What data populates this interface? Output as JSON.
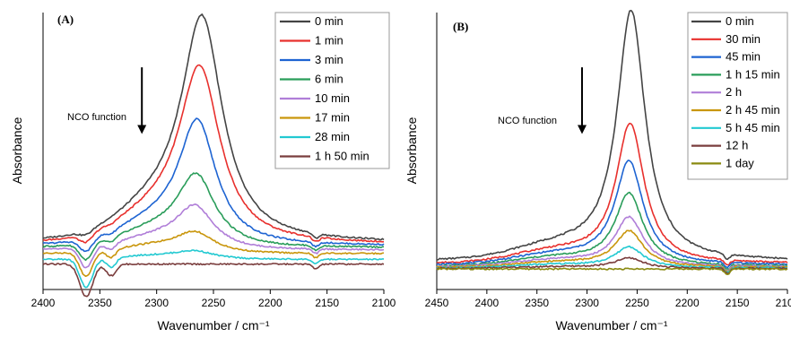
{
  "chart_data": [
    {
      "type": "line",
      "panel_label": "(A)",
      "xlabel": "Wavenumber / cm⁻¹",
      "ylabel": "Absorbance",
      "xlim": [
        2400,
        2100
      ],
      "ylim": [
        -0.2,
        1.0
      ],
      "x_ticks": [
        "2400",
        "2350",
        "2300",
        "2250",
        "2200",
        "2150",
        "2100"
      ],
      "x_tick_values": [
        2400,
        2350,
        2300,
        2250,
        2200,
        2150,
        2100
      ],
      "legend_position": "top-right",
      "annotation": {
        "text": "NCO function",
        "arrow_x": 2313,
        "arrow_y_from": 0.78,
        "arrow_y_to": 0.52
      },
      "series": [
        {
          "name": "0 min",
          "color": "#444444",
          "peak_x": 2260,
          "peak_height": 0.94,
          "width": 22,
          "base_level": 0.0
        },
        {
          "name": "1 min",
          "color": "#e8302d",
          "peak_x": 2262,
          "peak_height": 0.73,
          "width": 22,
          "base_level": -0.005
        },
        {
          "name": "3 min",
          "color": "#1e64d2",
          "peak_x": 2264,
          "peak_height": 0.51,
          "width": 20,
          "base_level": -0.012
        },
        {
          "name": "6 min",
          "color": "#2a9d5a",
          "peak_x": 2265,
          "peak_height": 0.29,
          "width": 20,
          "base_level": -0.02
        },
        {
          "name": "10 min",
          "color": "#b07ed8",
          "peak_x": 2266,
          "peak_height": 0.17,
          "width": 20,
          "base_level": -0.03
        },
        {
          "name": "17 min",
          "color": "#c9960c",
          "peak_x": 2266,
          "peak_height": 0.08,
          "width": 20,
          "base_level": -0.045
        },
        {
          "name": "28 min",
          "color": "#22c9d1",
          "peak_x": 2266,
          "peak_height": 0.03,
          "width": 20,
          "base_level": -0.07
        },
        {
          "name": "1 h 50 min",
          "color": "#7a3d3d",
          "peak_x": 2266,
          "peak_height": 0.0,
          "width": 20,
          "base_level": -0.09
        }
      ]
    },
    {
      "type": "line",
      "panel_label": "(B)",
      "xlabel": "Wavenumber / cm⁻¹",
      "ylabel": "Absorbance",
      "xlim": [
        2450,
        2100
      ],
      "ylim": [
        -0.08,
        1.0
      ],
      "x_ticks": [
        "2450",
        "2400",
        "2350",
        "2300",
        "2250",
        "2200",
        "2150",
        "2100"
      ],
      "x_tick_values": [
        2450,
        2400,
        2350,
        2300,
        2250,
        2200,
        2150,
        2100
      ],
      "legend_position": "top-right",
      "annotation": {
        "text": "NCO function",
        "arrow_x": 2305,
        "arrow_y_from": 0.78,
        "arrow_y_to": 0.52
      },
      "series": [
        {
          "name": "0 min",
          "color": "#444444",
          "peak_x": 2256,
          "peak_height": 0.97,
          "width": 17,
          "base_level": 0.03
        },
        {
          "name": "30 min",
          "color": "#e8302d",
          "peak_x": 2257,
          "peak_height": 0.54,
          "width": 17,
          "base_level": 0.02
        },
        {
          "name": "45 min",
          "color": "#1e64d2",
          "peak_x": 2258,
          "peak_height": 0.4,
          "width": 17,
          "base_level": 0.015
        },
        {
          "name": "1 h 15 min",
          "color": "#2a9d5a",
          "peak_x": 2258,
          "peak_height": 0.28,
          "width": 17,
          "base_level": 0.01
        },
        {
          "name": "2 h",
          "color": "#b07ed8",
          "peak_x": 2258,
          "peak_height": 0.19,
          "width": 17,
          "base_level": 0.008
        },
        {
          "name": "2 h 45 min",
          "color": "#c9960c",
          "peak_x": 2258,
          "peak_height": 0.14,
          "width": 17,
          "base_level": 0.006
        },
        {
          "name": "5 h 45 min",
          "color": "#22c9d1",
          "peak_x": 2258,
          "peak_height": 0.08,
          "width": 17,
          "base_level": 0.004
        },
        {
          "name": "12 h",
          "color": "#7a3d3d",
          "peak_x": 2258,
          "peak_height": 0.04,
          "width": 17,
          "base_level": 0.002
        },
        {
          "name": "1 day",
          "color": "#8a8a10",
          "peak_x": 2258,
          "peak_height": 0.0,
          "width": 17,
          "base_level": 0.0
        }
      ]
    }
  ]
}
